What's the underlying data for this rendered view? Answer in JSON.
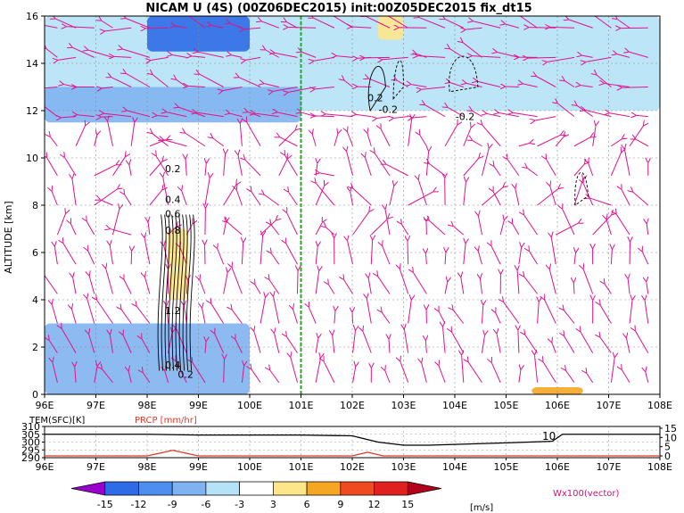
{
  "title": "NICAM U (4S) (00Z06DEC2015) init:00Z05DEC2015 fix_dt15",
  "main": {
    "ylabel": "ALTITUDE [km]",
    "xticks": [
      "96E",
      "97E",
      "98E",
      "99E",
      "100E",
      "101E",
      "102E",
      "103E",
      "104E",
      "105E",
      "106E",
      "107E",
      "108E"
    ],
    "yticks": [
      "0",
      "2",
      "4",
      "6",
      "8",
      "10",
      "12",
      "14",
      "16"
    ],
    "contour_labels": [
      "0.2",
      "0.4",
      "0.6",
      "0.8",
      "1.2",
      "0.4",
      "0.2",
      "-0.2",
      "0.2",
      "-0.2"
    ]
  },
  "sub": {
    "tem_label": "TEM(SFC)[K]",
    "prcp_label": "PRCP [mm/hr]",
    "yticks_left": [
      "310",
      "305",
      "300",
      "295",
      "290"
    ],
    "yticks_right": [
      "15",
      "10",
      "5",
      "0"
    ],
    "annotation": "10",
    "xticks": [
      "96E",
      "97E",
      "98E",
      "99E",
      "100E",
      "101E",
      "102E",
      "103E",
      "104E",
      "105E",
      "106E",
      "107E",
      "108E"
    ]
  },
  "colorbar": {
    "labels": [
      "-15",
      "-12",
      "-9",
      "-6",
      "-3",
      "3",
      "6",
      "9",
      "12",
      "15"
    ],
    "unit": "[m/s]",
    "colors": [
      "#9900cc",
      "#2e6be6",
      "#4d8ef0",
      "#7fb2f0",
      "#b5e2f7",
      "#ffffff",
      "#fde68a",
      "#f5a623",
      "#f04a20",
      "#e0201f",
      "#b3001b"
    ],
    "vector_label": "Wx100(vector)"
  },
  "chart_data": {
    "type": "heatmap",
    "title": "NICAM U (4S) (00Z06DEC2015) init:00Z05DEC2015 fix_dt15",
    "xlabel": "",
    "ylabel": "ALTITUDE [km]",
    "xlim": [
      96,
      108
    ],
    "ylim": [
      0,
      16
    ],
    "vertical_line_lon": 101,
    "u_field_regions": [
      {
        "lon": [
          96,
          108
        ],
        "alt": [
          12,
          16
        ],
        "u": -6
      },
      {
        "lon": [
          98,
          100
        ],
        "alt": [
          14.5,
          16
        ],
        "u": -15
      },
      {
        "lon": [
          96,
          101
        ],
        "alt": [
          11.5,
          13
        ],
        "u": -9
      },
      {
        "lon": [
          96,
          100
        ],
        "alt": [
          0,
          3
        ],
        "u": -9
      },
      {
        "lon": [
          98.4,
          98.8
        ],
        "alt": [
          4,
          7
        ],
        "u": 3
      },
      {
        "lon": [
          102.5,
          103
        ],
        "alt": [
          15,
          16
        ],
        "u": 3
      },
      {
        "lon": [
          105.5,
          106.5
        ],
        "alt": [
          0,
          0.3
        ],
        "u": 6
      }
    ],
    "tem_sfc": {
      "lon": [
        96,
        97,
        98,
        99,
        100,
        101,
        102,
        102.5,
        103,
        103.5,
        104,
        105,
        105.9,
        106.1,
        107,
        108
      ],
      "values": [
        305,
        305,
        305,
        304.5,
        304.5,
        304.5,
        304,
        300,
        298,
        298,
        298.5,
        299.5,
        300.5,
        305,
        305,
        305
      ]
    },
    "prcp": {
      "lon": [
        96,
        98,
        98.5,
        99,
        100,
        102,
        102.3,
        102.6,
        103,
        108
      ],
      "values": [
        0,
        0,
        3,
        0,
        0,
        0,
        2,
        0,
        0,
        0
      ]
    }
  }
}
